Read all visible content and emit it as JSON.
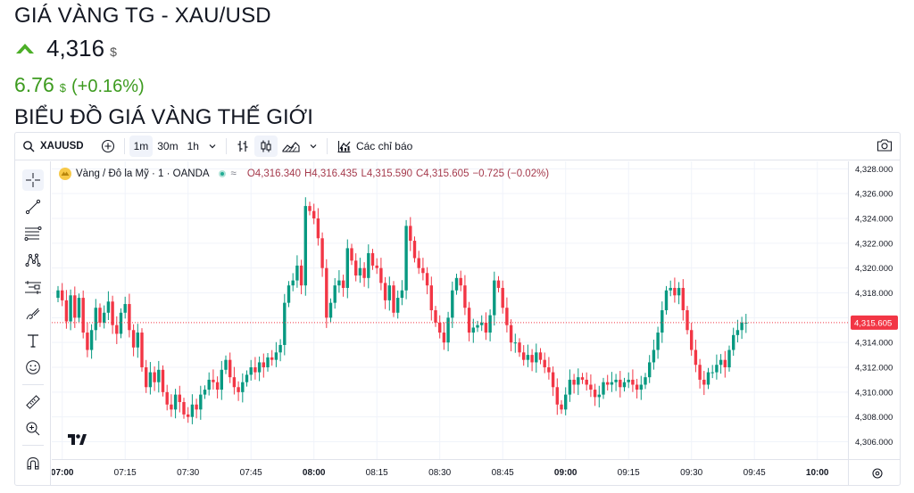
{
  "header": {
    "title": "GIÁ VÀNG TG - XAU/USD",
    "price": "4,316",
    "currency": "$",
    "change": "6.76",
    "change_currency": "$",
    "change_pct": "(+0.16%)",
    "subtitle": "BIỂU ĐỒ GIÁ VÀNG THẾ GIỚI",
    "up_color": "#4caf28"
  },
  "toolbar": {
    "symbol": "XAUUSD",
    "intervals": [
      "1m",
      "30m",
      "1h"
    ],
    "active_interval": "1m",
    "indicators_label": "Các chỉ báo"
  },
  "legend": {
    "symbol": "Vàng / Đô la Mỹ · 1 · OANDA",
    "wave": "≈",
    "open": "O4,316.340",
    "high": "H4,316.435",
    "low": "L4,315.590",
    "close": "C4,315.605",
    "change": "−0.725 (−0.02%)"
  },
  "left_tools": [
    "crosshair-icon",
    "trend-line-icon",
    "fib-icon",
    "pattern-icon",
    "projection-icon",
    "brush-icon",
    "text-icon",
    "emoji-icon",
    "ruler-icon",
    "zoom-icon",
    "magnet-icon"
  ],
  "chart_data": {
    "type": "candlestick",
    "up_color": "#089981",
    "down_color": "#f23645",
    "last_price_label": "4,315.605",
    "last_price": 4315.605,
    "y_ticks": [
      4306,
      4308,
      4310,
      4312,
      4314,
      4316,
      4318,
      4320,
      4322,
      4324,
      4326,
      4328
    ],
    "y_tick_labels": [
      "4,306.000",
      "4,308.000",
      "4,310.000",
      "4,312.000",
      "4,314.000",
      "4,316.000",
      "4,318.000",
      "4,320.000",
      "4,322.000",
      "4,324.000",
      "4,326.000",
      "4,328.000"
    ],
    "ylim": [
      4304.6,
      4328.6
    ],
    "x_tick_labels": [
      "07:00",
      "07:15",
      "07:30",
      "07:45",
      "08:00",
      "08:15",
      "08:30",
      "08:45",
      "09:00",
      "09:15",
      "09:30",
      "09:45",
      "10:00"
    ],
    "x_tick_minutes": [
      0,
      15,
      30,
      45,
      60,
      75,
      90,
      105,
      120,
      135,
      150,
      165,
      180
    ],
    "candle_interval": "1 minute",
    "start_time": "06:59",
    "closes": [
      4318.2,
      4317.4,
      4315.7,
      4317.8,
      4316.0,
      4317.6,
      4314.8,
      4313.4,
      4315.0,
      4316.8,
      4315.6,
      4316.4,
      4317.3,
      4315.4,
      4314.7,
      4316.4,
      4317.1,
      4315.0,
      4313.6,
      4314.8,
      4312.0,
      4310.4,
      4311.6,
      4310.8,
      4311.8,
      4310.0,
      4309.0,
      4308.6,
      4309.8,
      4309.2,
      4308.2,
      4308.0,
      4309.0,
      4308.6,
      4309.8,
      4310.2,
      4311.0,
      4310.8,
      4310.2,
      4311.8,
      4312.6,
      4311.2,
      4310.4,
      4310.0,
      4310.8,
      4311.4,
      4312.0,
      4311.6,
      4312.4,
      4312.0,
      4312.8,
      4312.6,
      4313.2,
      4313.8,
      4317.2,
      4318.6,
      4319.0,
      4320.2,
      4318.6,
      4325.0,
      4324.6,
      4324.0,
      4322.4,
      4320.0,
      4316.0,
      4317.2,
      4318.6,
      4319.0,
      4318.4,
      4321.6,
      4320.6,
      4319.4,
      4320.0,
      4319.2,
      4321.2,
      4320.2,
      4320.0,
      4318.8,
      4317.4,
      4318.6,
      4316.4,
      4317.6,
      4318.2,
      4323.4,
      4322.2,
      4320.8,
      4320.0,
      4319.6,
      4318.6,
      4316.6,
      4315.6,
      4314.8,
      4314.0,
      4316.0,
      4318.2,
      4319.2,
      4318.6,
      4316.8,
      4314.8,
      4315.2,
      4315.4,
      4315.6,
      4314.8,
      4316.2,
      4319.0,
      4318.4,
      4316.8,
      4315.4,
      4314.0,
      4314.0,
      4313.2,
      4312.6,
      4313.0,
      4312.4,
      4313.2,
      4312.6,
      4312.0,
      4311.6,
      4310.4,
      4309.0,
      4308.6,
      4309.8,
      4311.0,
      4310.6,
      4311.2,
      4311.0,
      4310.6,
      4310.2,
      4309.6,
      4309.8,
      4310.8,
      4310.6,
      4310.8,
      4311.0,
      4310.4,
      4310.8,
      4311.0,
      4310.6,
      4310.2,
      4310.6,
      4311.2,
      4312.4,
      4313.4,
      4314.8,
      4316.6,
      4318.2,
      4318.4,
      4317.8,
      4318.4,
      4316.6,
      4315.0,
      4313.4,
      4312.2,
      4311.0,
      4310.6,
      4311.6,
      4311.6,
      4312.2,
      4312.6,
      4312.0,
      4313.4,
      4314.6,
      4315.0,
      4315.6,
      4315.6
    ]
  }
}
